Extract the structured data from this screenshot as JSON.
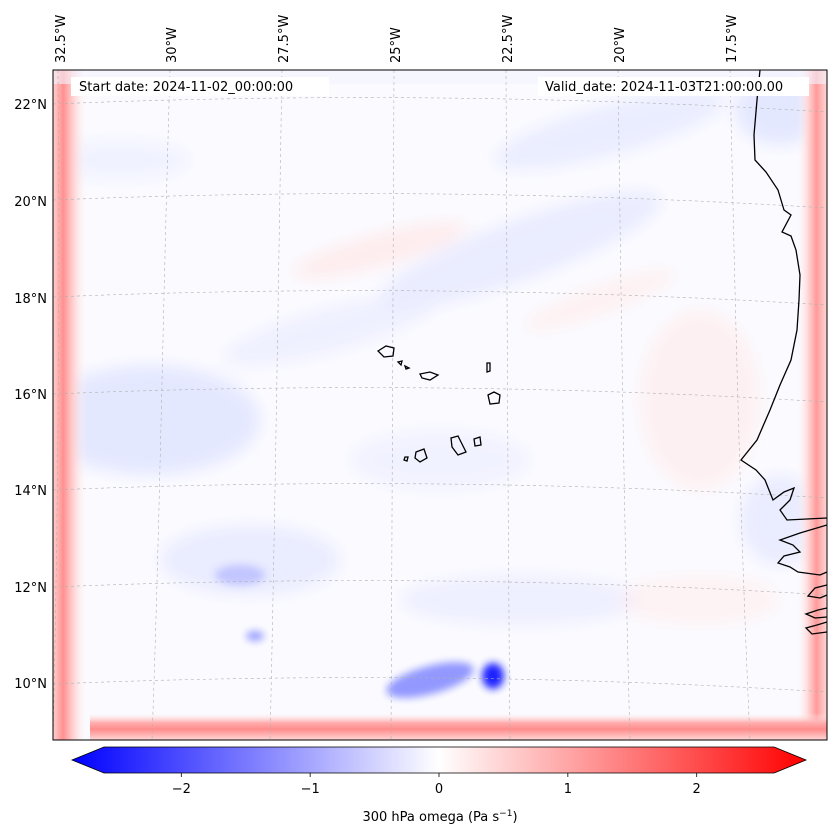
{
  "map": {
    "start_date": "Start date: 2024-11-02_00:00:00",
    "valid_date": "Valid_date: 2024-11-03T21:00:00.00",
    "lon_labels": [
      "32.5°W",
      "30°W",
      "27.5°W",
      "25°W",
      "22.5°W",
      "20°W",
      "17.5°W"
    ],
    "lat_labels": [
      "22°N",
      "20°N",
      "18°N",
      "16°N",
      "14°N",
      "12°N",
      "10°N"
    ],
    "features": [
      "Cape Verde islands",
      "West African coastline"
    ],
    "colors": {
      "negative": "#0000ff",
      "neutral": "#ffffff",
      "positive": "#ff0000",
      "coastline": "#000000",
      "gridline": "#b0b0b0"
    }
  },
  "colorbar": {
    "ticks": [
      "−2",
      "−1",
      "0",
      "1",
      "2"
    ],
    "tick_values": [
      -2,
      -1,
      0,
      1,
      2
    ],
    "range": [
      -2.6,
      2.6
    ],
    "label_main": "300 hPa omega (Pa s",
    "label_sup": "−1",
    "label_end": ")"
  }
}
